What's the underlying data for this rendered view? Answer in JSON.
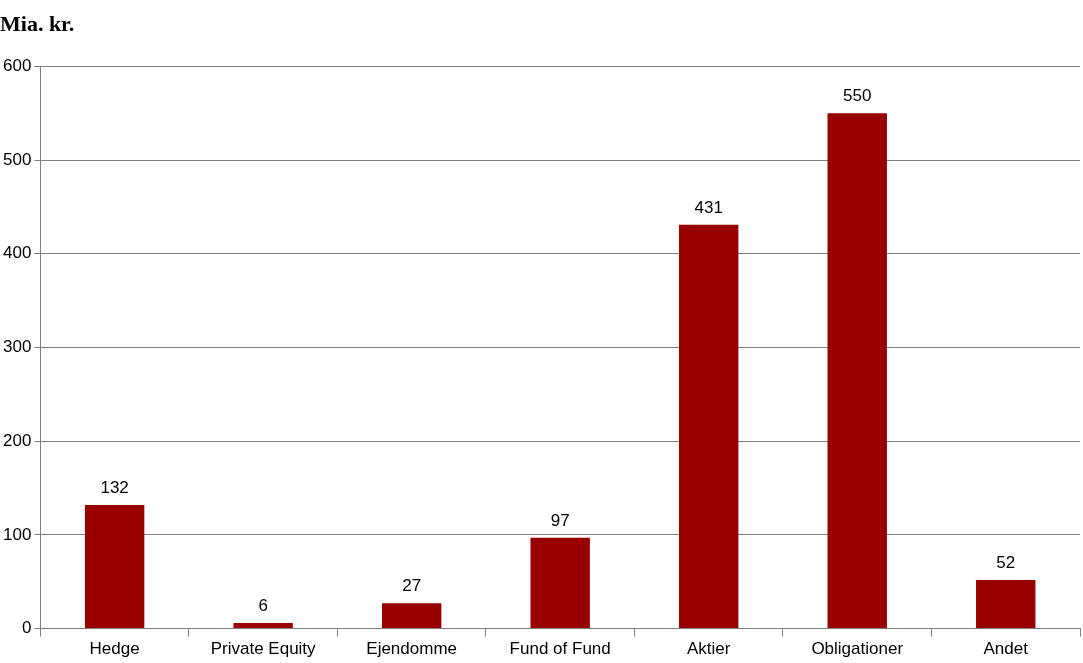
{
  "chart_data": {
    "type": "bar",
    "title": "Mia. kr.",
    "categories": [
      "Hedge",
      "Private Equity",
      "Ejendomme",
      "Fund of Fund",
      "Aktier",
      "Obligationer",
      "Andet"
    ],
    "values": [
      132,
      6,
      27,
      97,
      431,
      550,
      52
    ],
    "color": "#990000",
    "ylim": [
      0,
      600
    ],
    "yticks": [
      0,
      100,
      200,
      300,
      400,
      500,
      600
    ],
    "grid": "y",
    "data_labels": true
  }
}
